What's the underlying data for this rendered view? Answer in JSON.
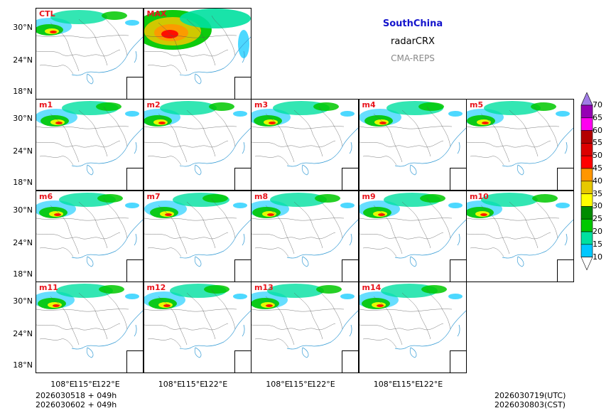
{
  "header": {
    "region": "SouthChina",
    "variable": "radarCRX",
    "system": "CMA-REPS",
    "region_color": "#1414cc",
    "system_color": "#888888"
  },
  "panels": [
    {
      "label": "CTL",
      "row": 0,
      "col": 0
    },
    {
      "label": "MAX",
      "row": 0,
      "col": 1
    },
    {
      "label": "m1",
      "row": 1,
      "col": 0
    },
    {
      "label": "m2",
      "row": 1,
      "col": 1
    },
    {
      "label": "m3",
      "row": 1,
      "col": 2
    },
    {
      "label": "m4",
      "row": 1,
      "col": 3
    },
    {
      "label": "m5",
      "row": 1,
      "col": 4
    },
    {
      "label": "m6",
      "row": 2,
      "col": 0
    },
    {
      "label": "m7",
      "row": 2,
      "col": 1
    },
    {
      "label": "m8",
      "row": 2,
      "col": 2
    },
    {
      "label": "m9",
      "row": 2,
      "col": 3
    },
    {
      "label": "m10",
      "row": 2,
      "col": 4
    },
    {
      "label": "m11",
      "row": 3,
      "col": 0
    },
    {
      "label": "m12",
      "row": 3,
      "col": 1
    },
    {
      "label": "m13",
      "row": 3,
      "col": 2
    },
    {
      "label": "m14",
      "row": 3,
      "col": 3
    }
  ],
  "axes": {
    "lat_ticks": [
      "30°N",
      "24°N",
      "18°N"
    ],
    "lon_ticks": [
      "108°E",
      "115°E",
      "122°E"
    ]
  },
  "colorbar": {
    "levels": [
      "10",
      "15",
      "20",
      "25",
      "30",
      "35",
      "40",
      "45",
      "50",
      "55",
      "60",
      "65",
      "70"
    ],
    "colors": [
      "#1e90ff",
      "#00c8ff",
      "#00e0a0",
      "#00c800",
      "#008c00",
      "#ffff00",
      "#e6c800",
      "#ff9600",
      "#ff0000",
      "#dc0000",
      "#b40000",
      "#ff00f0",
      "#9600b4",
      "#a07ce6"
    ]
  },
  "footer": {
    "init_line1": "2026030518  +  049h",
    "init_line2": "2026030602  +  049h",
    "valid_utc": "2026030719(UTC)",
    "valid_cst": "2026030803(CST)"
  }
}
